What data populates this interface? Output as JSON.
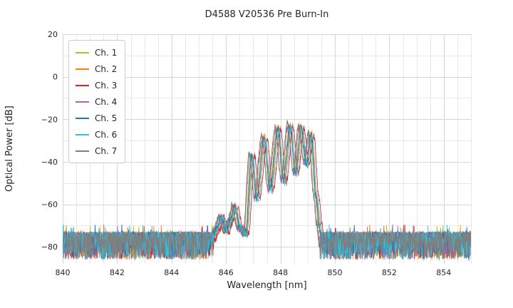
{
  "chart_data": {
    "type": "line",
    "title": "D4588 V20536 Pre Burn-In",
    "xlabel": "Wavelength [nm]",
    "ylabel": "Optical Power [dB]",
    "xlim": [
      840,
      855
    ],
    "ylim": [
      -88,
      20
    ],
    "x_ticks": [
      840,
      842,
      844,
      846,
      848,
      850,
      852,
      854
    ],
    "y_ticks": [
      20,
      0,
      -20,
      -40,
      -60,
      -80
    ],
    "grid": {
      "major_color": "#d5d5d5",
      "minor_color": "#e8e8e8",
      "x_minor_step": 0.5,
      "y_minor_step": 10
    },
    "background": "#ffffff",
    "noise_floor": {
      "top_db": -73,
      "span_db": 13
    },
    "envelope": [
      [
        845.4,
        -80
      ],
      [
        845.62,
        -72
      ],
      [
        845.8,
        -66
      ],
      [
        845.98,
        -73
      ],
      [
        846.12,
        -68
      ],
      [
        846.3,
        -61
      ],
      [
        846.48,
        -71
      ],
      [
        846.7,
        -74
      ],
      [
        846.92,
        -37
      ],
      [
        847.1,
        -57
      ],
      [
        847.38,
        -29
      ],
      [
        847.6,
        -53
      ],
      [
        847.88,
        -24.5
      ],
      [
        848.08,
        -49
      ],
      [
        848.33,
        -23
      ],
      [
        848.53,
        -45
      ],
      [
        848.73,
        -23.5
      ],
      [
        848.93,
        -41
      ],
      [
        849.1,
        -27
      ],
      [
        849.28,
        -56
      ],
      [
        849.4,
        -70
      ],
      [
        849.5,
        -80
      ]
    ],
    "series": [
      {
        "name": "Ch. 1",
        "color": "#bcbd22",
        "shift_nm": 0.0,
        "amp_db": 0,
        "seed": 11
      },
      {
        "name": "Ch. 2",
        "color": "#ff7f0e",
        "shift_nm": 0.05,
        "amp_db": 0.5,
        "seed": 22
      },
      {
        "name": "Ch. 3",
        "color": "#d62728",
        "shift_nm": 0.13,
        "amp_db": -0.5,
        "seed": 33
      },
      {
        "name": "Ch. 4",
        "color": "#b066ab",
        "shift_nm": -0.05,
        "amp_db": -0.5,
        "seed": 44
      },
      {
        "name": "Ch. 5",
        "color": "#1f77b4",
        "shift_nm": 0.02,
        "amp_db": 0,
        "seed": 55
      },
      {
        "name": "Ch. 6",
        "color": "#2fc4de",
        "shift_nm": 0.07,
        "amp_db": -1,
        "seed": 66
      },
      {
        "name": "Ch. 7",
        "color": "#7f7f7f",
        "shift_nm": -0.07,
        "amp_db": 1,
        "seed": 77
      }
    ],
    "legend": {
      "position": "upper left"
    }
  }
}
